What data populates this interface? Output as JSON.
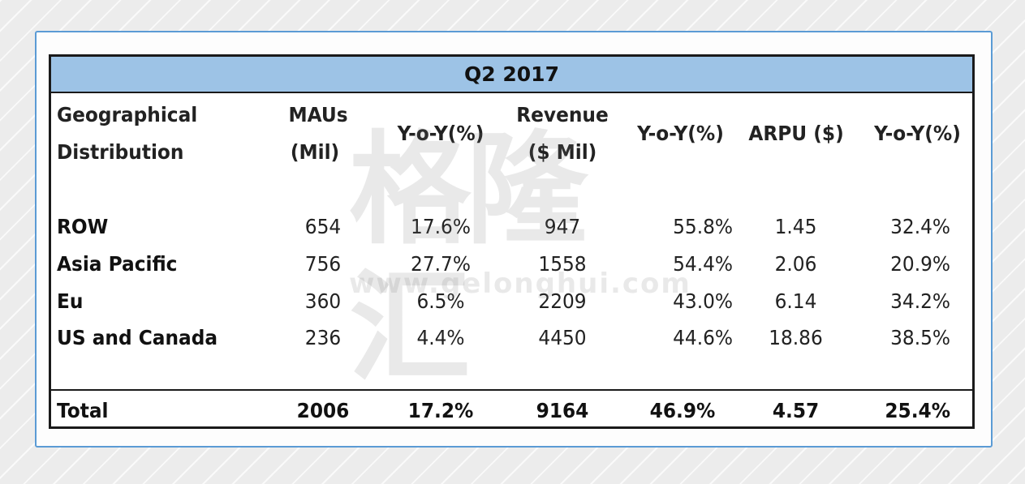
{
  "table": {
    "title": "Q2 2017",
    "headers": {
      "geo_line1": "Geographical",
      "geo_line2": "Distribution",
      "maus_line1": "MAUs",
      "maus_line2": "(Mil)",
      "yoy1": "Y-o-Y(%)",
      "revenue_line1": "Revenue",
      "revenue_line2": "($ Mil)",
      "yoy2": "Y-o-Y(%)",
      "arpu": "ARPU ($)",
      "yoy3": "Y-o-Y(%)"
    },
    "rows": [
      {
        "region": "ROW",
        "maus": "654",
        "maus_yoy": "17.6%",
        "revenue": "947",
        "revenue_yoy": "55.8%",
        "arpu": "1.45",
        "arpu_yoy": "32.4%"
      },
      {
        "region": "Asia Pacific",
        "maus": "756",
        "maus_yoy": "27.7%",
        "revenue": "1558",
        "revenue_yoy": "54.4%",
        "arpu": "2.06",
        "arpu_yoy": "20.9%"
      },
      {
        "region": "Eu",
        "maus": "360",
        "maus_yoy": "6.5%",
        "revenue": "2209",
        "revenue_yoy": "43.0%",
        "arpu": "6.14",
        "arpu_yoy": "34.2%"
      },
      {
        "region": "US and Canada",
        "maus": "236",
        "maus_yoy": "4.4%",
        "revenue": "4450",
        "revenue_yoy": "44.6%",
        "arpu": "18.86",
        "arpu_yoy": "38.5%"
      }
    ],
    "total": {
      "region": "Total",
      "maus": "2006",
      "maus_yoy": "17.2%",
      "revenue": "9164",
      "revenue_yoy": "46.9%",
      "arpu": "4.57",
      "arpu_yoy": "25.4%"
    }
  },
  "watermark": {
    "brand": "格隆汇",
    "url": "www.gelonghui.com"
  },
  "colors": {
    "title_fill": "#9dc3e6",
    "frame_border": "#5b9bd5"
  }
}
